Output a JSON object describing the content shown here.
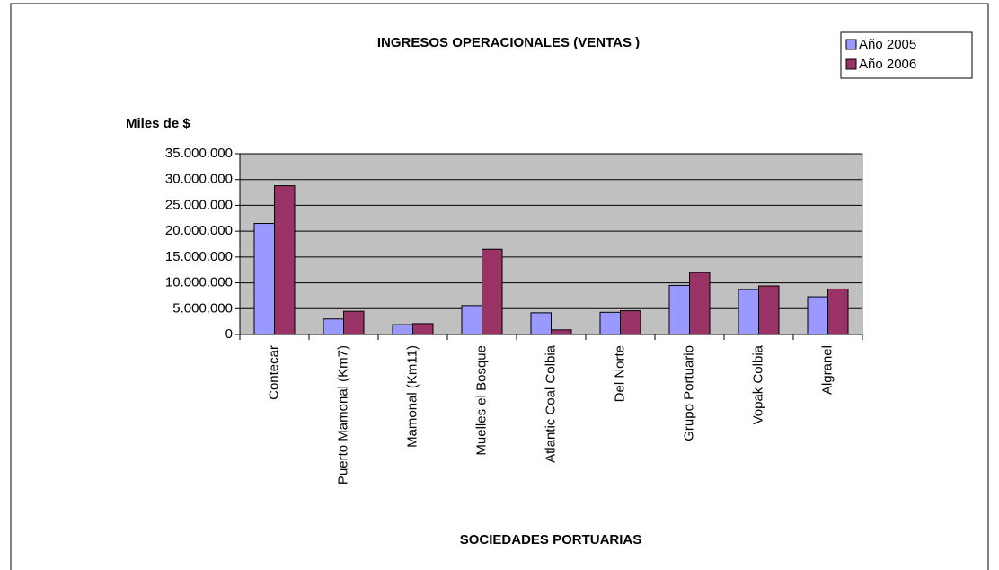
{
  "chart_data": {
    "type": "bar",
    "title": "INGRESOS  OPERACIONALES (VENTAS )",
    "y_label": "Miles de $",
    "x_label": "SOCIEDADES  PORTUARIAS",
    "categories": [
      "Contecar",
      "Puerto Mamonal (Km7)",
      "Mamonal (Km11)",
      "Muelles el Bosque",
      "Atlantic Coal  Colbia",
      "Del Norte",
      "Grupo Portuario",
      "Vopak  Colbia",
      "Algranel"
    ],
    "series": [
      {
        "name": "Año 2005",
        "color": "#9999ff",
        "values": [
          21500000,
          3000000,
          1900000,
          5600000,
          4200000,
          4300000,
          9500000,
          8700000,
          7300000
        ]
      },
      {
        "name": "Año 2006",
        "color": "#993366",
        "values": [
          28800000,
          4500000,
          2100000,
          16500000,
          900000,
          4600000,
          12000000,
          9400000,
          8800000
        ]
      }
    ],
    "ylim": [
      0,
      35000000
    ],
    "yticks": [
      0,
      {
        "value": 5000000,
        "label": "5.000.000"
      },
      {
        "value": 10000000,
        "label": "10.000.000"
      },
      {
        "value": 15000000,
        "label": "15.000.000"
      },
      {
        "value": 20000000,
        "label": "20.000.000"
      },
      {
        "value": 25000000,
        "label": "25.000.000"
      },
      {
        "value": 30000000,
        "label": "30.000.000"
      },
      {
        "value": 35000000,
        "label": "35.000.000"
      }
    ],
    "grid": true,
    "legend": "top-right",
    "plot_background": "#c0c0c0"
  }
}
